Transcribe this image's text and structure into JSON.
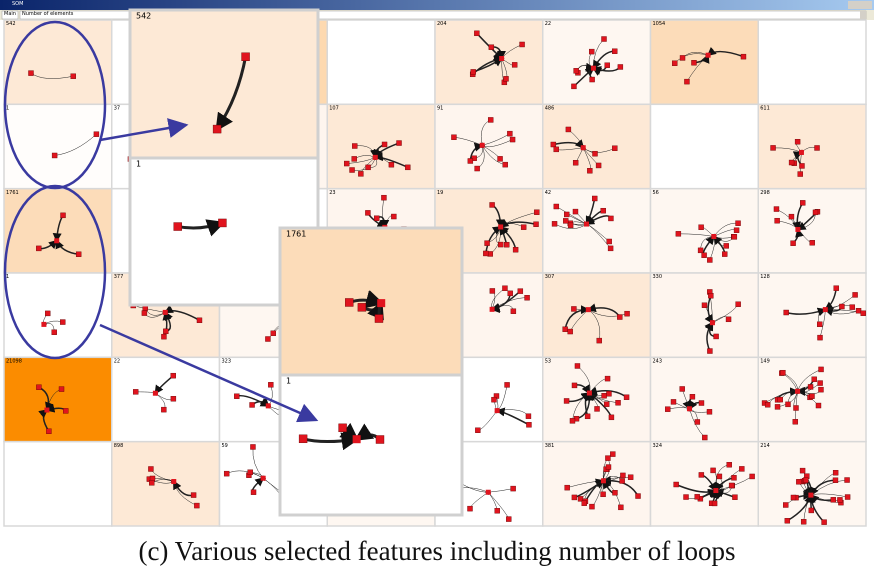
{
  "window": {
    "title": "SOM",
    "menu": "Main",
    "selector": "Number of elements"
  },
  "grid": {
    "columns": 8,
    "cells": [
      {
        "label": "542",
        "shade": "#fde9d6",
        "nodes": 2
      },
      {
        "shade": "#ffffff",
        "nodes": 3
      },
      {
        "shade": "#fdd9b0",
        "nodes": 3
      },
      {
        "shade": "#ffffff",
        "nodes": 0
      },
      {
        "label": "204",
        "shade": "#fde9d6",
        "nodes": 8
      },
      {
        "label": "22",
        "shade": "#fef7f1",
        "nodes": 9
      },
      {
        "label": "1054",
        "shade": "#fcdcb9",
        "nodes": 5
      },
      {
        "shade": "#ffffff",
        "nodes": 0
      },
      {
        "label": "1",
        "shade": "#fffdfb",
        "nodes": 2
      },
      {
        "label": "37",
        "shade": "#ffffff",
        "nodes": 3
      },
      {
        "shade": "#fef5ee",
        "nodes": 5
      },
      {
        "label": "107",
        "shade": "#fde9d6",
        "nodes": 10
      },
      {
        "label": "91",
        "shade": "#fef5ee",
        "nodes": 9
      },
      {
        "label": "486",
        "shade": "#fde9d6",
        "nodes": 8
      },
      {
        "shade": "#ffffff",
        "nodes": 0
      },
      {
        "label": "611",
        "shade": "#fde9d6",
        "nodes": 7
      },
      {
        "label": "1761",
        "shade": "#fcdcb9",
        "nodes": 3
      },
      {
        "shade": "#ffffff",
        "nodes": 3
      },
      {
        "shade": "#ffffff",
        "nodes": 4
      },
      {
        "label": "23",
        "shade": "#fef5ee",
        "nodes": 9
      },
      {
        "label": "19",
        "shade": "#fde9d6",
        "nodes": 10
      },
      {
        "label": "42",
        "shade": "#fef7f1",
        "nodes": 12
      },
      {
        "label": "56",
        "shade": "#fef7f1",
        "nodes": 11
      },
      {
        "label": "298",
        "shade": "#fef7f1",
        "nodes": 8
      },
      {
        "label": "1",
        "shade": "#ffffff",
        "nodes": 3
      },
      {
        "label": "377",
        "shade": "#fde9d6",
        "nodes": 6
      },
      {
        "shade": "#fef7f1",
        "nodes": 5
      },
      {
        "shade": "#ffffff",
        "nodes": 5
      },
      {
        "shade": "#fef5ee",
        "nodes": 6
      },
      {
        "label": "307",
        "shade": "#fde9d6",
        "nodes": 6
      },
      {
        "label": "330",
        "shade": "#fef5ee",
        "nodes": 7
      },
      {
        "label": "128",
        "shade": "#fef7f1",
        "nodes": 9
      },
      {
        "label": "21098",
        "shade": "#fb8c00",
        "nodes": 4
      },
      {
        "label": "22",
        "shade": "#ffffff",
        "nodes": 4
      },
      {
        "label": "323",
        "shade": "#ffffff",
        "nodes": 5
      },
      {
        "shade": "#ffffff",
        "nodes": 4
      },
      {
        "shade": "#ffffff",
        "nodes": 6
      },
      {
        "label": "53",
        "shade": "#fef5ee",
        "nodes": 14
      },
      {
        "label": "243",
        "shade": "#fef7f1",
        "nodes": 8
      },
      {
        "label": "149",
        "shade": "#fef7f1",
        "nodes": 18
      },
      {
        "shade": "#ffffff",
        "nodes": 0
      },
      {
        "label": "898",
        "shade": "#fde9d6",
        "nodes": 6
      },
      {
        "label": "59",
        "shade": "#ffffff",
        "nodes": 7
      },
      {
        "shade": "#fef7f1",
        "nodes": 6
      },
      {
        "shade": "#ffffff",
        "nodes": 6
      },
      {
        "label": "381",
        "shade": "#fef5ee",
        "nodes": 18
      },
      {
        "label": "324",
        "shade": "#fef7f1",
        "nodes": 16
      },
      {
        "label": "214",
        "shade": "#fef7f1",
        "nodes": 20
      }
    ]
  },
  "zooms": [
    {
      "label": "542",
      "shade": "#fde9d6"
    },
    {
      "label": "1",
      "shade": "#ffffff"
    },
    {
      "label": "1761",
      "shade": "#fcdcb9"
    },
    {
      "label": "1",
      "shade": "#ffffff"
    }
  ],
  "caption": "(c) Various selected features including number of loops"
}
